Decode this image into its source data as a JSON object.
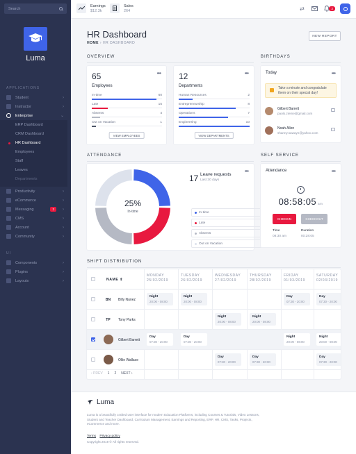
{
  "sidebar": {
    "search_placeholder": "Search",
    "brand": "Luma",
    "section_applications": "APPLICATIONS",
    "apps": [
      {
        "label": "Student"
      },
      {
        "label": "Instructor"
      },
      {
        "label": "Enterprise"
      }
    ],
    "enterprise_sub": [
      {
        "label": "ERP Dashboard"
      },
      {
        "label": "CRM Dashboard"
      },
      {
        "label": "HR Dashboard"
      },
      {
        "label": "Employees"
      },
      {
        "label": "Staff"
      },
      {
        "label": "Leaves"
      },
      {
        "label": "Departments"
      }
    ],
    "apps2": [
      {
        "label": "Productivity"
      },
      {
        "label": "eCommerce"
      },
      {
        "label": "Messaging",
        "badge": "2"
      },
      {
        "label": "CMS"
      },
      {
        "label": "Account"
      },
      {
        "label": "Community"
      }
    ],
    "section_ui": "UI",
    "ui": [
      {
        "label": "Components"
      },
      {
        "label": "Plugins"
      },
      {
        "label": "Layouts"
      }
    ]
  },
  "topbar": {
    "earnings_label": "Earnings",
    "earnings_value": "$12.3k",
    "sales_label": "Sales",
    "sales_value": "264",
    "notif_count": "2"
  },
  "page": {
    "title": "HR Dashboard",
    "crumb_home": "HOME",
    "crumb_current": "HR DASHBOARD",
    "new_report": "NEW REPORT"
  },
  "sections": {
    "overview": "OVERVIEW",
    "birthdays": "BIRTHDAYS",
    "attendance": "ATTENDANCE",
    "self_service": "SELF SERVICE",
    "shift": "SHIFT DISTRIBUTION"
  },
  "employees_card": {
    "count": "65",
    "label": "Employees",
    "rows": [
      {
        "label": "In-time",
        "value": "60",
        "pct": 92,
        "color": "#3f64e8"
      },
      {
        "label": "Late",
        "value": "15",
        "pct": 23,
        "color": "#e8193f"
      },
      {
        "label": "Absents",
        "value": "4",
        "pct": 12,
        "color": "#b5b9c4"
      },
      {
        "label": "Out on Vacation",
        "value": "1",
        "pct": 6,
        "color": "#4d5568"
      }
    ],
    "button": "VIEW EMPLOYEES"
  },
  "departments_card": {
    "count": "12",
    "label": "Departments",
    "rows": [
      {
        "label": "Human Resources",
        "value": "2",
        "pct": 20,
        "color": "#3f64e8"
      },
      {
        "label": "Entrepreneurship",
        "value": "8",
        "pct": 80,
        "color": "#3f64e8"
      },
      {
        "label": "Operations",
        "value": "7",
        "pct": 70,
        "color": "#3f64e8"
      },
      {
        "label": "Engineering",
        "value": "10",
        "pct": 100,
        "color": "#3f64e8"
      }
    ],
    "button": "VIEW DEPARTMENTS"
  },
  "birthdays_card": {
    "title": "Today",
    "note": "Take a minute and congratulate them on their special day!",
    "people": [
      {
        "name": "Gilbert Barrett",
        "email": "paolo.zieme@gmail.com"
      },
      {
        "name": "Noah Allen",
        "email": "shanny.sawayn@yahoo.com"
      }
    ]
  },
  "attendance_card": {
    "donut_value": "25%",
    "donut_label": "In-time",
    "count": "17",
    "title": "Leave requests",
    "subtitle": "Last 30 days",
    "legend": [
      {
        "label": "In-time",
        "color": "#3f64e8"
      },
      {
        "label": "Late",
        "color": "#e8193f"
      },
      {
        "label": "Absents",
        "color": "#b5b9c4"
      },
      {
        "label": "Out on Vacation",
        "color": "#dde2ec"
      }
    ],
    "segments": [
      {
        "label": "In-time",
        "value": 25,
        "color": "#3f64e8"
      },
      {
        "label": "Late",
        "value": 25,
        "color": "#e8193f"
      },
      {
        "label": "Absents",
        "value": 25,
        "color": "#b5b9c4"
      },
      {
        "label": "Out on Vacation",
        "value": 25,
        "color": "#dde2ec"
      }
    ]
  },
  "self_service": {
    "title": "Attendance",
    "time": "08:58:05",
    "ampm": "am",
    "checkin": "CHECKIN",
    "checkout": "CHECKOUT",
    "time_label": "Time",
    "time_value": "08:30 am",
    "duration_label": "Duration",
    "duration_value": "00:28:05"
  },
  "shift_table": {
    "name_header": "NAME",
    "days": [
      {
        "day": "MONDAY",
        "date": "25/02/2019"
      },
      {
        "day": "TUESDAY",
        "date": "26/02/2019"
      },
      {
        "day": "WEDNESDAY",
        "date": "27/02/2019"
      },
      {
        "day": "THURSDAY",
        "date": "28/02/2019"
      },
      {
        "day": "FRIDAY",
        "date": "01/03/2019"
      },
      {
        "day": "SATURDAY",
        "date": "02/03/2019"
      }
    ],
    "rows": [
      {
        "initials": "BN",
        "name": "Billy Nunez",
        "checked": false,
        "shifts": [
          {
            "col": 0,
            "type": "Night",
            "hours": "20:00 - 08:00"
          },
          {
            "col": 1,
            "type": "Night",
            "hours": "20:00 - 08:00"
          },
          {
            "col": 4,
            "type": "Day",
            "hours": "07:30 - 20:00"
          },
          {
            "col": 5,
            "type": "Day",
            "hours": "07:30 - 20:00"
          }
        ]
      },
      {
        "initials": "TP",
        "name": "Tony Parks",
        "checked": false,
        "shifts": [
          {
            "col": 2,
            "type": "Night",
            "hours": "20:00 - 08:00"
          },
          {
            "col": 3,
            "type": "Night",
            "hours": "20:00 - 08:00"
          }
        ]
      },
      {
        "initials": "",
        "name": "Gilbert Barrett",
        "checked": true,
        "shifts": [
          {
            "col": 0,
            "type": "Day",
            "hours": "07:30 - 20:00"
          },
          {
            "col": 1,
            "type": "Day",
            "hours": "07:30 - 20:00"
          },
          {
            "col": 4,
            "type": "Night",
            "hours": "20:00 - 08:00"
          },
          {
            "col": 5,
            "type": "Night",
            "hours": "20:00 - 08:00"
          }
        ]
      },
      {
        "initials": "",
        "name": "Ollie Wallace",
        "checked": false,
        "shifts": [
          {
            "col": 2,
            "type": "Day",
            "hours": "07:30 - 20:00"
          },
          {
            "col": 3,
            "type": "Day",
            "hours": "07:30 - 20:00"
          },
          {
            "col": 5,
            "type": "Day",
            "hours": "07:30 - 20:00"
          }
        ]
      }
    ],
    "pager": {
      "prev": "‹ PREV",
      "p1": "1",
      "p2": "2",
      "next": "NEXT ›"
    }
  },
  "footer": {
    "brand": "Luma",
    "desc": "Luma is a beautifully crafted user interface for modern Education Platforms, including Courses & Tutorials, Video Lessons, Student and Teacher Dashboard, Curriculum Management, Earnings and Reporting, ERP, HR, CMS, Tasks, Projects, eCommerce and more.",
    "terms": "Terms",
    "privacy": "Privacy policy",
    "copyright": "Copyright 2019 © All rights reserved."
  }
}
